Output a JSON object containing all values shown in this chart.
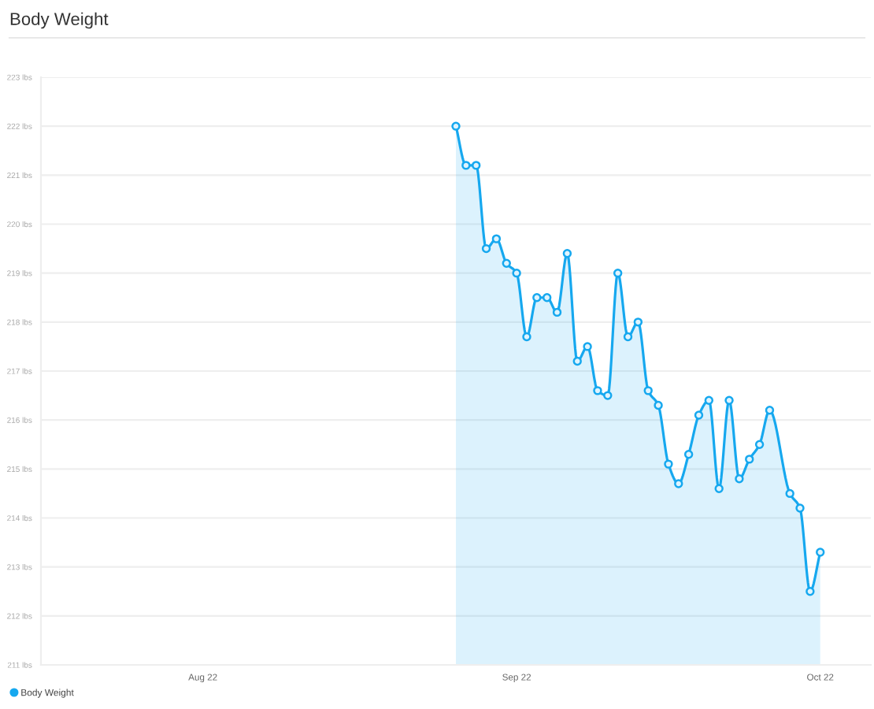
{
  "chart_data": {
    "type": "area",
    "title": "Body Weight",
    "x": [
      "2022-08-26",
      "2022-08-27",
      "2022-08-28",
      "2022-08-29",
      "2022-08-30",
      "2022-08-31",
      "2022-09-01",
      "2022-09-02",
      "2022-09-03",
      "2022-09-04",
      "2022-09-05",
      "2022-09-06",
      "2022-09-07",
      "2022-09-08",
      "2022-09-09",
      "2022-09-10",
      "2022-09-11",
      "2022-09-12",
      "2022-09-13",
      "2022-09-14",
      "2022-09-15",
      "2022-09-16",
      "2022-09-17",
      "2022-09-18",
      "2022-09-19",
      "2022-09-20",
      "2022-09-21",
      "2022-09-22",
      "2022-09-23",
      "2022-09-24",
      "2022-09-25",
      "2022-09-26",
      "2022-09-28",
      "2022-09-29",
      "2022-09-30",
      "2022-10-01"
    ],
    "series": [
      {
        "name": "Body Weight",
        "color": "#16a8ef",
        "values": [
          222.0,
          221.2,
          221.2,
          219.5,
          219.7,
          219.2,
          219.0,
          217.7,
          218.5,
          218.5,
          218.2,
          219.4,
          217.2,
          217.5,
          216.6,
          216.5,
          219.0,
          217.7,
          218.0,
          216.6,
          216.3,
          215.1,
          214.7,
          215.3,
          216.1,
          216.4,
          214.6,
          216.4,
          214.8,
          215.2,
          215.5,
          216.2,
          214.5,
          214.2,
          212.5,
          213.3
        ]
      }
    ],
    "xlim": [
      "2022-07-16",
      "2022-10-06"
    ],
    "xticks": [
      {
        "value": "2022-08-01",
        "label": "Aug 22"
      },
      {
        "value": "2022-09-01",
        "label": "Sep 22"
      },
      {
        "value": "2022-10-01",
        "label": "Oct 22"
      }
    ],
    "ylim": [
      211,
      223
    ],
    "yticks": [
      {
        "value": 211,
        "label": "211 lbs"
      },
      {
        "value": 212,
        "label": "212 lbs"
      },
      {
        "value": 213,
        "label": "213 lbs"
      },
      {
        "value": 214,
        "label": "214 lbs"
      },
      {
        "value": 215,
        "label": "215 lbs"
      },
      {
        "value": 216,
        "label": "216 lbs"
      },
      {
        "value": 217,
        "label": "217 lbs"
      },
      {
        "value": 218,
        "label": "218 lbs"
      },
      {
        "value": 219,
        "label": "219 lbs"
      },
      {
        "value": 220,
        "label": "220 lbs"
      },
      {
        "value": 221,
        "label": "221 lbs"
      },
      {
        "value": 222,
        "label": "222 lbs"
      },
      {
        "value": 223,
        "label": "223 lbs"
      }
    ],
    "grid": "y",
    "legend": "bottom left",
    "marker": "circle",
    "line_style": "solid"
  }
}
